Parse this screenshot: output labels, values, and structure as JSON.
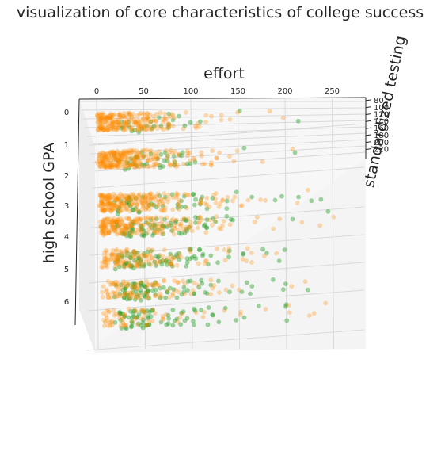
{
  "chart_data": {
    "type": "scatter",
    "projection": "3d",
    "title": "visualization of core characteristics of college success",
    "xlabel": "effort",
    "ylabel": "high school GPA",
    "zlabel": "standardized testing",
    "xlim": [
      -10,
      280
    ],
    "ylim": [
      -0.5,
      7
    ],
    "zlim": [
      80,
      230
    ],
    "x_ticks": [
      0,
      50,
      100,
      150,
      200,
      250
    ],
    "y_ticks": [
      0,
      1,
      2,
      3,
      4,
      5,
      6
    ],
    "z_ticks": [
      80,
      100,
      120,
      140,
      160,
      180,
      200,
      220
    ],
    "grid": true,
    "colors": {
      "orange": "#ff8c00",
      "green": "#2ca02c",
      "pane": "#f7f7f7",
      "grid": "#d9d9d9"
    },
    "series": [
      {
        "color": "#ff8c00",
        "opacity": 0.3,
        "x_range": [
          0,
          260
        ],
        "y_levels": [
          1,
          2,
          3,
          4,
          5,
          6,
          7
        ],
        "y_level_counts": [
          240,
          260,
          250,
          220,
          140,
          110,
          70
        ],
        "x_concentration": "dense near 0–60, sparse toward 250",
        "count": 1290
      },
      {
        "color": "#2ca02c",
        "opacity": 0.45,
        "x_range": [
          0,
          270
        ],
        "y_levels": [
          1,
          2,
          3,
          4,
          5,
          6,
          7
        ],
        "y_level_counts": [
          25,
          40,
          55,
          75,
          85,
          85,
          75
        ],
        "x_concentration": "spread over 20–200, a few beyond 250",
        "count": 440
      }
    ]
  }
}
